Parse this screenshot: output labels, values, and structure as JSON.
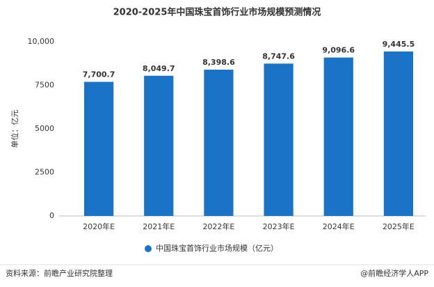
{
  "chart_data": {
    "type": "bar",
    "title": "2020-2025年中国珠宝首饰行业市场规模预测情况",
    "y_axis_label": "单位：亿元",
    "categories": [
      "2020年E",
      "2021年E",
      "2022年E",
      "2023年E",
      "2024年E",
      "2025年E"
    ],
    "series": [
      {
        "name": "中国珠宝首饰行业市场规模（亿元）",
        "color": "#1a73c7",
        "values": [
          7700.7,
          8049.7,
          8398.6,
          8747.6,
          9096.6,
          9445.5
        ],
        "value_labels": [
          "7,700.7",
          "8,049.7",
          "8,398.6",
          "8,747.6",
          "9,096.6",
          "9,445.5"
        ]
      }
    ],
    "ylim": [
      0,
      10000
    ],
    "yticks": [
      0,
      2500,
      5000,
      7500,
      {
        "value": 10000,
        "label": "10,000"
      }
    ],
    "grid": false,
    "legend": "bottom",
    "source": "资料来源：前瞻产业研究院整理",
    "credit": "@前瞻经济学人APP"
  }
}
